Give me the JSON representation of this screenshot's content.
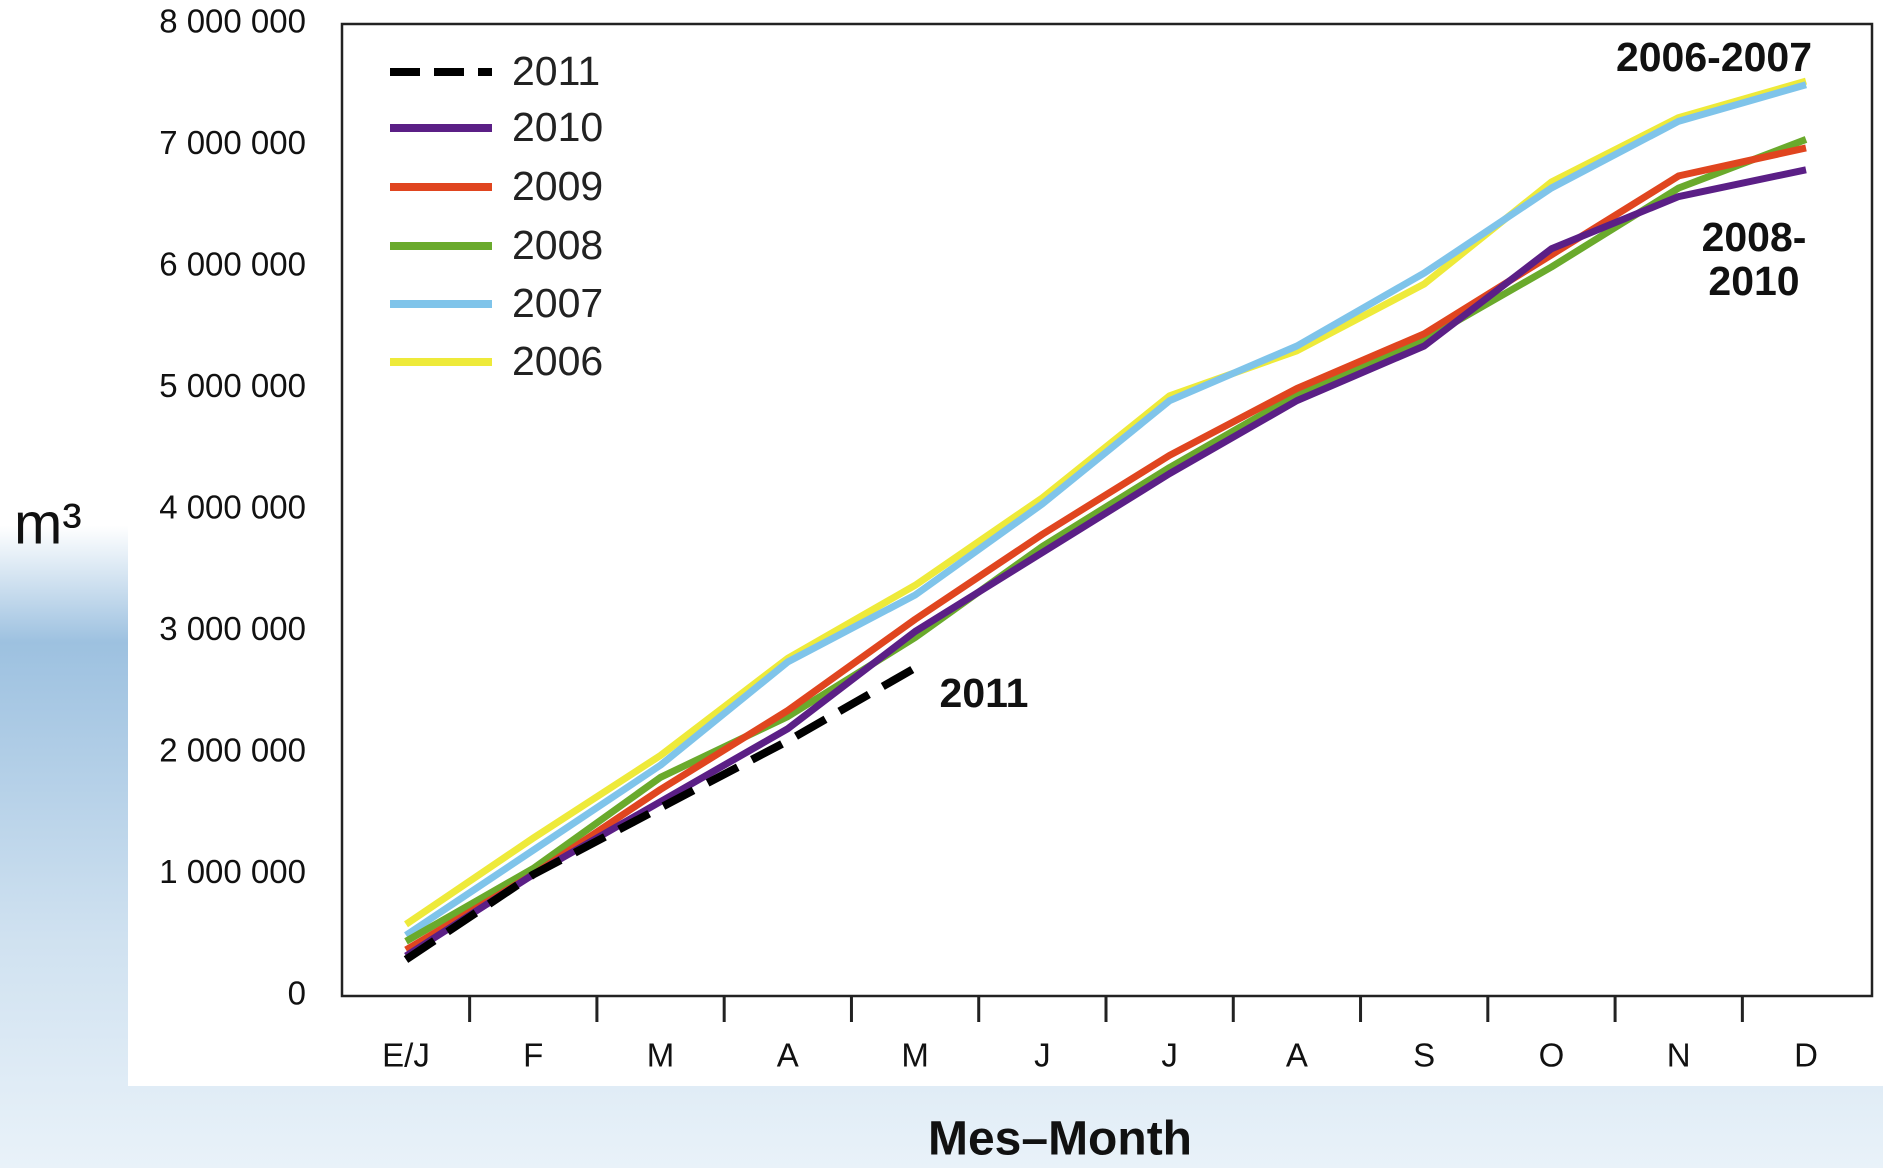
{
  "chart_data": {
    "type": "line",
    "ylabel": "m³",
    "xlabel": "Mes–Month",
    "categories": [
      "E/J",
      "F",
      "M",
      "A",
      "M",
      "J",
      "J",
      "A",
      "S",
      "O",
      "N",
      "D"
    ],
    "ylim": [
      0,
      8000000
    ],
    "yticks": [
      0,
      {
        "value": 1000000,
        "label": "1 000 000"
      },
      {
        "value": 2000000,
        "label": "2 000 000"
      },
      {
        "value": 3000000,
        "label": "3 000 000"
      },
      {
        "value": 4000000,
        "label": "4 000 000"
      },
      {
        "value": 5000000,
        "label": "5 000 000"
      },
      {
        "value": 6000000,
        "label": "6 000 000"
      },
      {
        "value": 7000000,
        "label": "7 000 000"
      },
      {
        "value": 8000000,
        "label": "8 000 000"
      }
    ],
    "legend": "upper left",
    "series": [
      {
        "name": "2011",
        "color": "#000000",
        "dashed": true,
        "values": [
          300000,
          1000000,
          1550000,
          2100000,
          2700000,
          null,
          null,
          null,
          null,
          null,
          null,
          null
        ]
      },
      {
        "name": "2010",
        "color": "#5b1f86",
        "values": [
          330000,
          1000000,
          1600000,
          2200000,
          3000000,
          3650000,
          4300000,
          4900000,
          5350000,
          6150000,
          6580000,
          6800000
        ]
      },
      {
        "name": "2009",
        "color": "#e0451f",
        "values": [
          380000,
          1000000,
          1700000,
          2350000,
          3100000,
          3800000,
          4450000,
          5000000,
          5450000,
          6100000,
          6750000,
          6980000
        ]
      },
      {
        "name": "2008",
        "color": "#6aaa2c",
        "values": [
          450000,
          1050000,
          1800000,
          2300000,
          2950000,
          3700000,
          4350000,
          4950000,
          5400000,
          6000000,
          6650000,
          7050000
        ]
      },
      {
        "name": "2007",
        "color": "#7fc4ea",
        "values": [
          500000,
          1200000,
          1900000,
          2750000,
          3300000,
          4050000,
          4900000,
          5350000,
          5950000,
          6650000,
          7200000,
          7500000
        ]
      },
      {
        "name": "2006",
        "color": "#eeea3a",
        "values": [
          590000,
          1300000,
          1980000,
          2780000,
          3380000,
          4100000,
          4940000,
          5310000,
          5860000,
          6700000,
          7230000,
          7530000
        ]
      }
    ],
    "annotations": [
      "2006-2007",
      "2008-\n2010",
      "2011"
    ]
  }
}
